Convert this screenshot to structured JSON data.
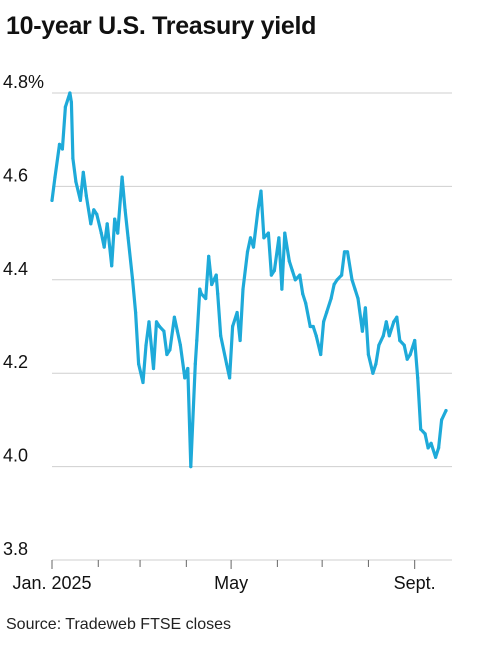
{
  "title": "10-year U.S. Treasury yield",
  "source": "Source: Tradeweb FTSE closes",
  "colors": {
    "line": "#1eaad9",
    "grid": "#cfcfcf",
    "text": "#111111",
    "axis": "#666666"
  },
  "chart_data": {
    "type": "line",
    "title": "10-year U.S. Treasury yield",
    "xlabel": "",
    "ylabel": "",
    "ylim": [
      3.8,
      4.8
    ],
    "yticks": [
      3.8,
      4.0,
      4.2,
      4.4,
      4.6,
      4.8
    ],
    "ytick_labels": [
      "3.8",
      "4.0",
      "4.2",
      "4.4",
      "4.6",
      "4.8%"
    ],
    "xlim": [
      "2025-01-01",
      "2025-09-26"
    ],
    "xtick_labels": [
      {
        "date": "2025-01-01",
        "label": "Jan. 2025"
      },
      {
        "date": "2025-05-01",
        "label": "May"
      },
      {
        "date": "2025-09-01",
        "label": "Sept."
      }
    ],
    "minor_xticks": [
      "2025-02-01",
      "2025-03-01",
      "2025-04-01",
      "2025-06-01",
      "2025-07-01",
      "2025-08-01"
    ],
    "grid": true,
    "series": [
      {
        "x": [
          "2025-01-01",
          "2025-01-03",
          "2025-01-06",
          "2025-01-08",
          "2025-01-10",
          "2025-01-13",
          "2025-01-14",
          "2025-01-15",
          "2025-01-17",
          "2025-01-20",
          "2025-01-22",
          "2025-01-24",
          "2025-01-27",
          "2025-01-29",
          "2025-01-31",
          "2025-02-03",
          "2025-02-05",
          "2025-02-07",
          "2025-02-10",
          "2025-02-12",
          "2025-02-14",
          "2025-02-17",
          "2025-02-19",
          "2025-02-21",
          "2025-02-24",
          "2025-02-26",
          "2025-02-28",
          "2025-03-03",
          "2025-03-05",
          "2025-03-07",
          "2025-03-10",
          "2025-03-12",
          "2025-03-14",
          "2025-03-17",
          "2025-03-19",
          "2025-03-21",
          "2025-03-24",
          "2025-03-26",
          "2025-03-28",
          "2025-03-31",
          "2025-04-02",
          "2025-04-04",
          "2025-04-07",
          "2025-04-08",
          "2025-04-10",
          "2025-04-11",
          "2025-04-14",
          "2025-04-16",
          "2025-04-18",
          "2025-04-21",
          "2025-04-22",
          "2025-04-24",
          "2025-04-28",
          "2025-04-30",
          "2025-05-02",
          "2025-05-05",
          "2025-05-07",
          "2025-05-09",
          "2025-05-12",
          "2025-05-14",
          "2025-05-16",
          "2025-05-19",
          "2025-05-21",
          "2025-05-23",
          "2025-05-26",
          "2025-05-28",
          "2025-05-30",
          "2025-06-02",
          "2025-06-04",
          "2025-06-06",
          "2025-06-09",
          "2025-06-11",
          "2025-06-13",
          "2025-06-16",
          "2025-06-18",
          "2025-06-20",
          "2025-06-23",
          "2025-06-25",
          "2025-06-27",
          "2025-06-30",
          "2025-07-02",
          "2025-07-04",
          "2025-07-07",
          "2025-07-09",
          "2025-07-11",
          "2025-07-14",
          "2025-07-16",
          "2025-07-18",
          "2025-07-21",
          "2025-07-23",
          "2025-07-25",
          "2025-07-28",
          "2025-07-30",
          "2025-08-01",
          "2025-08-04",
          "2025-08-06",
          "2025-08-08",
          "2025-08-11",
          "2025-08-13",
          "2025-08-15",
          "2025-08-18",
          "2025-08-20",
          "2025-08-22",
          "2025-08-25",
          "2025-08-27",
          "2025-08-29",
          "2025-09-01",
          "2025-09-03",
          "2025-09-05",
          "2025-09-08",
          "2025-09-10",
          "2025-09-12",
          "2025-09-15",
          "2025-09-17",
          "2025-09-19",
          "2025-09-22"
        ],
        "y": [
          4.57,
          4.62,
          4.69,
          4.68,
          4.77,
          4.8,
          4.78,
          4.66,
          4.61,
          4.57,
          4.63,
          4.58,
          4.52,
          4.55,
          4.54,
          4.5,
          4.47,
          4.52,
          4.43,
          4.53,
          4.5,
          4.62,
          4.55,
          4.49,
          4.4,
          4.33,
          4.22,
          4.18,
          4.26,
          4.31,
          4.21,
          4.31,
          4.3,
          4.29,
          4.24,
          4.25,
          4.32,
          4.29,
          4.26,
          4.19,
          4.21,
          4.0,
          4.22,
          4.27,
          4.38,
          4.37,
          4.36,
          4.45,
          4.39,
          4.41,
          4.37,
          4.28,
          4.22,
          4.19,
          4.3,
          4.33,
          4.27,
          4.38,
          4.46,
          4.49,
          4.47,
          4.55,
          4.59,
          4.49,
          4.5,
          4.41,
          4.42,
          4.49,
          4.38,
          4.5,
          4.44,
          4.42,
          4.4,
          4.41,
          4.37,
          4.35,
          4.3,
          4.3,
          4.28,
          4.24,
          4.31,
          4.33,
          4.36,
          4.39,
          4.4,
          4.41,
          4.46,
          4.46,
          4.4,
          4.38,
          4.36,
          4.29,
          4.34,
          4.24,
          4.2,
          4.22,
          4.26,
          4.28,
          4.31,
          4.28,
          4.31,
          4.32,
          4.27,
          4.26,
          4.23,
          4.24,
          4.27,
          4.19,
          4.08,
          4.07,
          4.04,
          4.05,
          4.02,
          4.04,
          4.1,
          4.12
        ]
      }
    ]
  }
}
